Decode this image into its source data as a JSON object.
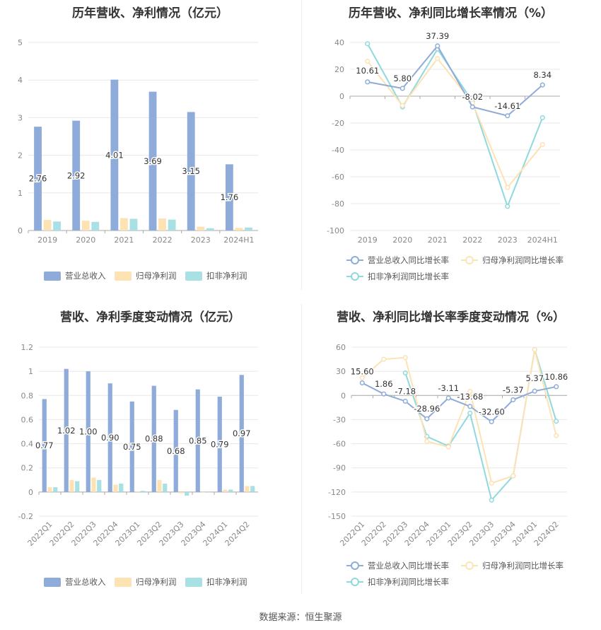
{
  "footer": "数据来源：恒生聚源",
  "colors": {
    "revenue": "#8eabd9",
    "net_profit": "#fde2b3",
    "deducted_net_profit": "#a9e0e3",
    "rev_line": "#8eabd9",
    "np_line": "#fde2b3",
    "dnp_line": "#8fd9de"
  },
  "chart_data": [
    {
      "id": "annual_bar",
      "type": "bar",
      "title": "历年营收、净利情况（亿元）",
      "categories": [
        "2019",
        "2020",
        "2021",
        "2022",
        "2023",
        "2024H1"
      ],
      "series": [
        {
          "name": "营业总收入",
          "values": [
            2.76,
            2.92,
            4.01,
            3.69,
            3.15,
            1.76
          ],
          "labels": [
            "2.76",
            "2.92",
            "4.01",
            "3.69",
            "3.15",
            "1.76"
          ]
        },
        {
          "name": "归母净利润",
          "values": [
            0.28,
            0.26,
            0.33,
            0.32,
            0.1,
            0.07
          ]
        },
        {
          "name": "扣非净利润",
          "values": [
            0.24,
            0.23,
            0.31,
            0.29,
            0.06,
            0.08
          ]
        }
      ],
      "ylim": [
        0,
        5
      ],
      "yticks": [
        "0",
        "1",
        "2",
        "3",
        "4",
        "5"
      ],
      "legend": "bottom"
    },
    {
      "id": "annual_line",
      "type": "line",
      "title": "历年营收、净利同比增长率情况（%）",
      "categories": [
        "2019",
        "2020",
        "2021",
        "2022",
        "2023",
        "2024H1"
      ],
      "series": [
        {
          "name": "营业总收入同比增长率",
          "values": [
            10.61,
            5.8,
            37.39,
            -8.02,
            -14.61,
            8.34
          ],
          "labels": [
            "10.61",
            "5.80",
            "37.39",
            "-8.02",
            "-14.61",
            "8.34"
          ]
        },
        {
          "name": "归母净利润同比增长率",
          "values": [
            26,
            -7,
            28,
            -5,
            -68,
            -36
          ]
        },
        {
          "name": "扣非净利润同比增长率",
          "values": [
            39,
            -8,
            35,
            -4,
            -82,
            -16
          ]
        }
      ],
      "ylim": [
        -100,
        40
      ],
      "yticks": [
        "-100",
        "-80",
        "-60",
        "-40",
        "-20",
        "0",
        "20",
        "40"
      ],
      "legend": "bottom"
    },
    {
      "id": "quarter_bar",
      "type": "bar",
      "title": "营收、净利季度变动情况（亿元）",
      "categories": [
        "2022Q1",
        "2022Q2",
        "2022Q3",
        "2022Q4",
        "2023Q1",
        "2023Q2",
        "2023Q3",
        "2023Q4",
        "2024Q1",
        "2024Q2"
      ],
      "series": [
        {
          "name": "营业总收入",
          "values": [
            0.77,
            1.02,
            1.0,
            0.9,
            0.75,
            0.88,
            0.68,
            0.85,
            0.79,
            0.97
          ],
          "labels": [
            "0.77",
            "1.02",
            "1.00",
            "0.90",
            "0.75",
            "0.88",
            "0.68",
            "0.85",
            "0.79",
            "0.97"
          ]
        },
        {
          "name": "归母净利润",
          "values": [
            0.04,
            0.1,
            0.12,
            0.06,
            0.005,
            0.1,
            -0.01,
            0.0,
            0.02,
            0.05
          ]
        },
        {
          "name": "扣非净利润",
          "values": [
            0.04,
            0.09,
            0.1,
            0.07,
            0.01,
            0.07,
            -0.03,
            0.0,
            0.02,
            0.05
          ]
        }
      ],
      "ylim": [
        -0.2,
        1.2
      ],
      "yticks": [
        "-0.2",
        "0",
        "0.2",
        "0.4",
        "0.6",
        "0.8",
        "1",
        "1.2"
      ],
      "legend": "bottom"
    },
    {
      "id": "quarter_line",
      "type": "line",
      "title": "营收、净利同比增长率季度变动情况（%）",
      "categories": [
        "2022Q1",
        "2022Q2",
        "2022Q3",
        "2022Q4",
        "2023Q1",
        "2023Q2",
        "2023Q3",
        "2023Q4",
        "2024Q1",
        "2024Q2"
      ],
      "series": [
        {
          "name": "营业总收入同比增长率",
          "values": [
            15.6,
            1.86,
            -7.18,
            -28.96,
            -3.11,
            -13.68,
            -32.6,
            -5.37,
            5.37,
            10.86
          ],
          "labels": [
            "15.60",
            "1.86",
            "-7.18",
            "-28.96",
            "-3.11",
            "-13.68",
            "-32.60",
            "-5.37",
            "5.37",
            "10.86"
          ]
        },
        {
          "name": "归母净利润同比增长率",
          "values": [
            22,
            45,
            47,
            -57,
            -64,
            5,
            -109,
            -100,
            57,
            -50
          ]
        },
        {
          "name": "扣非净利润同比增长率",
          "values": [
            null,
            null,
            28,
            -51,
            -63,
            -22,
            -130,
            -100,
            57,
            -32
          ]
        }
      ],
      "ylim": [
        -150,
        60
      ],
      "yticks": [
        "-150",
        "-120",
        "-90",
        "-60",
        "-30",
        "0",
        "30",
        "60"
      ],
      "legend": "bottom"
    }
  ]
}
